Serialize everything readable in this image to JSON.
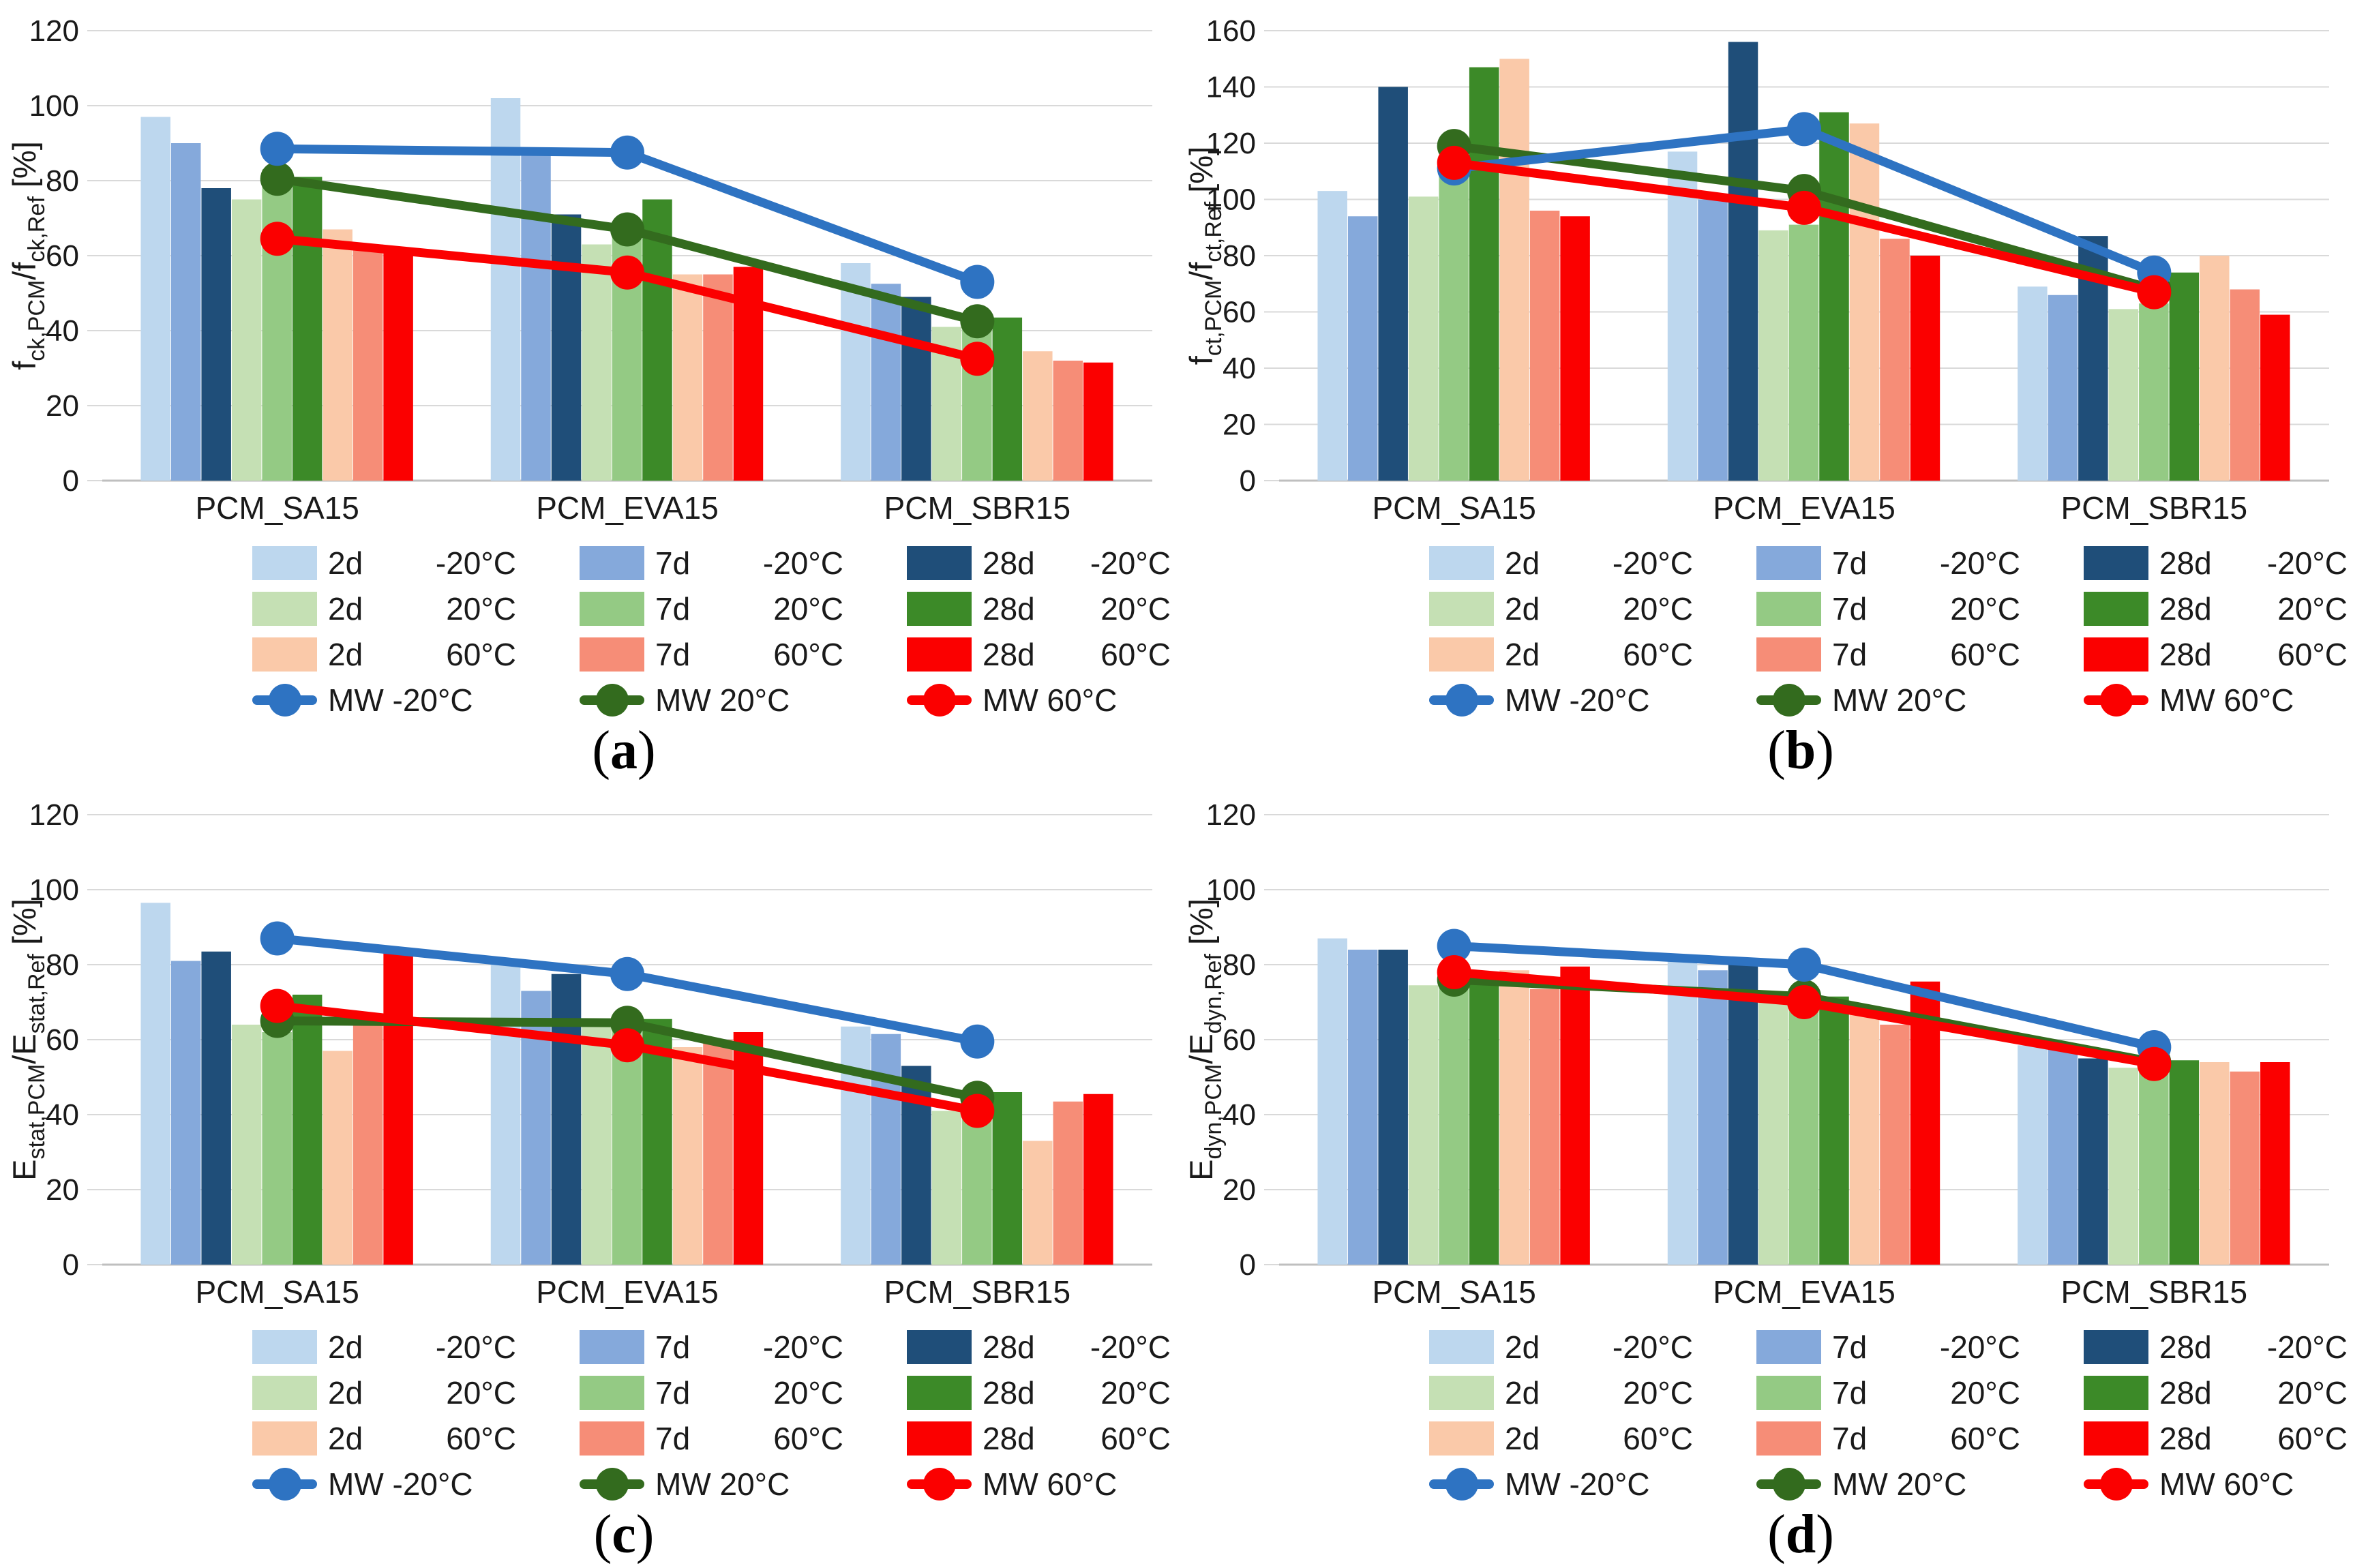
{
  "colors": {
    "bar_2d_m20": "#BDD7EE",
    "bar_7d_m20": "#85A9DB",
    "bar_28d_m20": "#1F4E79",
    "bar_2d_20": "#C5E0B4",
    "bar_7d_20": "#94CA84",
    "bar_28d_20": "#3C8A28",
    "bar_2d_60": "#FAC9A9",
    "bar_7d_60": "#F68D77",
    "bar_28d_60": "#FB0000",
    "line_m20": "#2E73C2",
    "line_20": "#336B1E",
    "line_60": "#FB0000",
    "gridline": "#D9D9D9",
    "axis": "#BFBFBF",
    "text": "#1a1a1a"
  },
  "legend": {
    "bars": [
      {
        "age": "2d",
        "temp": "-20°C",
        "color": "bar_2d_m20"
      },
      {
        "age": "7d",
        "temp": "-20°C",
        "color": "bar_7d_m20"
      },
      {
        "age": "28d",
        "temp": "-20°C",
        "color": "bar_28d_m20"
      },
      {
        "age": "2d",
        "temp": "20°C",
        "color": "bar_2d_20"
      },
      {
        "age": "7d",
        "temp": "20°C",
        "color": "bar_7d_20"
      },
      {
        "age": "28d",
        "temp": "20°C",
        "color": "bar_28d_20"
      },
      {
        "age": "2d",
        "temp": "60°C",
        "color": "bar_2d_60"
      },
      {
        "age": "7d",
        "temp": "60°C",
        "color": "bar_7d_60"
      },
      {
        "age": "28d",
        "temp": "60°C",
        "color": "bar_28d_60"
      }
    ],
    "lines": [
      {
        "label": "MW -20°C",
        "color": "line_m20"
      },
      {
        "label": "MW 20°C",
        "color": "line_20"
      },
      {
        "label": "MW 60°C",
        "color": "line_60"
      }
    ]
  },
  "chart_data": [
    {
      "type": "bar",
      "caption": "a",
      "cap_open": "(",
      "cap_close": ")",
      "ylabel_segments": [
        {
          "t": "f",
          "sub": false
        },
        {
          "t": "ck,PCM",
          "sub": true
        },
        {
          "t": "/f",
          "sub": false
        },
        {
          "t": "ck,Ref",
          "sub": true
        },
        {
          "t": " [%]",
          "sub": false
        }
      ],
      "ylim": [
        0,
        120
      ],
      "ytick": 20,
      "grid": true,
      "categories": [
        "PCM_SA15",
        "PCM_EVA15",
        "PCM_SBR15"
      ],
      "bar_series": [
        {
          "name": "2d -20°C",
          "color": "bar_2d_m20",
          "values": [
            97,
            102,
            58
          ]
        },
        {
          "name": "7d -20°C",
          "color": "bar_7d_m20",
          "values": [
            90,
            88,
            52.5
          ]
        },
        {
          "name": "28d -20°C",
          "color": "bar_28d_m20",
          "values": [
            78,
            71,
            49
          ]
        },
        {
          "name": "2d 20°C",
          "color": "bar_2d_20",
          "values": [
            75,
            63,
            41
          ]
        },
        {
          "name": "7d 20°C",
          "color": "bar_7d_20",
          "values": [
            83,
            67,
            43
          ]
        },
        {
          "name": "28d 20°C",
          "color": "bar_28d_20",
          "values": [
            81,
            75,
            43.5
          ]
        },
        {
          "name": "2d 60°C",
          "color": "bar_2d_60",
          "values": [
            67,
            55,
            34.5
          ]
        },
        {
          "name": "7d 60°C",
          "color": "bar_7d_60",
          "values": [
            63,
            55,
            32
          ]
        },
        {
          "name": "28d 60°C",
          "color": "bar_28d_60",
          "values": [
            62,
            57,
            31.5
          ]
        }
      ],
      "line_series": [
        {
          "name": "MW -20°C",
          "color": "line_m20",
          "values": [
            88.5,
            87.5,
            53
          ]
        },
        {
          "name": "MW 20°C",
          "color": "line_20",
          "values": [
            80.5,
            67,
            42.5
          ]
        },
        {
          "name": "MW 60°C",
          "color": "line_60",
          "values": [
            64.5,
            55.5,
            32.5
          ]
        }
      ]
    },
    {
      "type": "bar",
      "caption": "b",
      "cap_open": "(",
      "cap_close": ")",
      "ylabel_segments": [
        {
          "t": "f",
          "sub": false
        },
        {
          "t": "ct,PCM",
          "sub": true
        },
        {
          "t": "/f",
          "sub": false
        },
        {
          "t": "ct,Ref",
          "sub": true
        },
        {
          "t": " [%]",
          "sub": false
        }
      ],
      "ylim": [
        0,
        160
      ],
      "ytick": 20,
      "grid": true,
      "categories": [
        "PCM_SA15",
        "PCM_EVA15",
        "PCM_SBR15"
      ],
      "bar_series": [
        {
          "name": "2d -20°C",
          "color": "bar_2d_m20",
          "values": [
            103,
            117,
            69
          ]
        },
        {
          "name": "7d -20°C",
          "color": "bar_7d_m20",
          "values": [
            94,
            100,
            66
          ]
        },
        {
          "name": "28d -20°C",
          "color": "bar_28d_m20",
          "values": [
            140,
            156,
            87
          ]
        },
        {
          "name": "2d 20°C",
          "color": "bar_2d_20",
          "values": [
            101,
            89,
            61
          ]
        },
        {
          "name": "7d 20°C",
          "color": "bar_7d_20",
          "values": [
            111,
            91,
            63
          ]
        },
        {
          "name": "28d 20°C",
          "color": "bar_28d_20",
          "values": [
            147,
            131,
            74
          ]
        },
        {
          "name": "2d 60°C",
          "color": "bar_2d_60",
          "values": [
            150,
            127,
            80
          ]
        },
        {
          "name": "7d 60°C",
          "color": "bar_7d_60",
          "values": [
            96,
            86,
            68
          ]
        },
        {
          "name": "28d 60°C",
          "color": "bar_28d_60",
          "values": [
            94,
            80,
            59
          ]
        }
      ],
      "line_series": [
        {
          "name": "MW -20°C",
          "color": "line_m20",
          "values": [
            111,
            125,
            74
          ]
        },
        {
          "name": "MW 20°C",
          "color": "line_20",
          "values": [
            119,
            103,
            68
          ]
        },
        {
          "name": "MW 60°C",
          "color": "line_60",
          "values": [
            113,
            97,
            67
          ]
        }
      ]
    },
    {
      "type": "bar",
      "caption": "c",
      "cap_open": "(",
      "cap_close": ")",
      "ylabel_segments": [
        {
          "t": "E",
          "sub": false
        },
        {
          "t": "stat,PCM",
          "sub": true
        },
        {
          "t": "/E",
          "sub": false
        },
        {
          "t": "stat,Ref",
          "sub": true
        },
        {
          "t": " [%]",
          "sub": false
        }
      ],
      "ylim": [
        0,
        120
      ],
      "ytick": 20,
      "grid": true,
      "categories": [
        "PCM_SA15",
        "PCM_EVA15",
        "PCM_SBR15"
      ],
      "bar_series": [
        {
          "name": "2d -20°C",
          "color": "bar_2d_m20",
          "values": [
            96.5,
            80,
            63.5
          ]
        },
        {
          "name": "7d -20°C",
          "color": "bar_7d_m20",
          "values": [
            81,
            73,
            61.5
          ]
        },
        {
          "name": "28d -20°C",
          "color": "bar_28d_m20",
          "values": [
            83.5,
            77.5,
            53
          ]
        },
        {
          "name": "2d 20°C",
          "color": "bar_2d_20",
          "values": [
            64,
            64,
            41
          ]
        },
        {
          "name": "7d 20°C",
          "color": "bar_7d_20",
          "values": [
            62,
            65.5,
            45
          ]
        },
        {
          "name": "28d 20°C",
          "color": "bar_28d_20",
          "values": [
            72,
            65.5,
            46
          ]
        },
        {
          "name": "2d 60°C",
          "color": "bar_2d_60",
          "values": [
            57,
            58,
            33
          ]
        },
        {
          "name": "7d 60°C",
          "color": "bar_7d_60",
          "values": [
            64,
            60,
            43.5
          ]
        },
        {
          "name": "28d 60°C",
          "color": "bar_28d_60",
          "values": [
            84,
            62,
            45.5
          ]
        }
      ],
      "line_series": [
        {
          "name": "MW -20°C",
          "color": "line_m20",
          "values": [
            87,
            77.5,
            59.5
          ]
        },
        {
          "name": "MW 20°C",
          "color": "line_20",
          "values": [
            65,
            64.5,
            44.5
          ]
        },
        {
          "name": "MW 60°C",
          "color": "line_60",
          "values": [
            69,
            58.5,
            41
          ]
        }
      ]
    },
    {
      "type": "bar",
      "caption": "d",
      "cap_open": "(",
      "cap_close": ")",
      "ylabel_segments": [
        {
          "t": "E",
          "sub": false
        },
        {
          "t": "dyn,PCM",
          "sub": true
        },
        {
          "t": "/E",
          "sub": false
        },
        {
          "t": "dyn,Ref",
          "sub": true
        },
        {
          "t": " [%]",
          "sub": false
        }
      ],
      "ylim": [
        0,
        120
      ],
      "ytick": 20,
      "grid": true,
      "categories": [
        "PCM_SA15",
        "PCM_EVA15",
        "PCM_SBR15"
      ],
      "bar_series": [
        {
          "name": "2d -20°C",
          "color": "bar_2d_m20",
          "values": [
            87,
            81,
            58.5
          ]
        },
        {
          "name": "7d -20°C",
          "color": "bar_7d_m20",
          "values": [
            84,
            78.5,
            57.5
          ]
        },
        {
          "name": "28d -20°C",
          "color": "bar_28d_m20",
          "values": [
            84,
            80,
            55
          ]
        },
        {
          "name": "2d 20°C",
          "color": "bar_2d_20",
          "values": [
            74.5,
            70,
            52.5
          ]
        },
        {
          "name": "7d 20°C",
          "color": "bar_7d_20",
          "values": [
            77,
            69,
            54
          ]
        },
        {
          "name": "28d 20°C",
          "color": "bar_28d_20",
          "values": [
            75,
            71.5,
            54.5
          ]
        },
        {
          "name": "2d 60°C",
          "color": "bar_2d_60",
          "values": [
            78.5,
            67.5,
            54
          ]
        },
        {
          "name": "7d 60°C",
          "color": "bar_7d_60",
          "values": [
            73.5,
            64,
            51.5
          ]
        },
        {
          "name": "28d 60°C",
          "color": "bar_28d_60",
          "values": [
            79.5,
            75.5,
            54
          ]
        }
      ],
      "line_series": [
        {
          "name": "MW -20°C",
          "color": "line_m20",
          "values": [
            85,
            80,
            58
          ]
        },
        {
          "name": "MW 20°C",
          "color": "line_20",
          "values": [
            76,
            71.5,
            54
          ]
        },
        {
          "name": "MW 60°C",
          "color": "line_60",
          "values": [
            78,
            70,
            53.5
          ]
        }
      ]
    }
  ]
}
